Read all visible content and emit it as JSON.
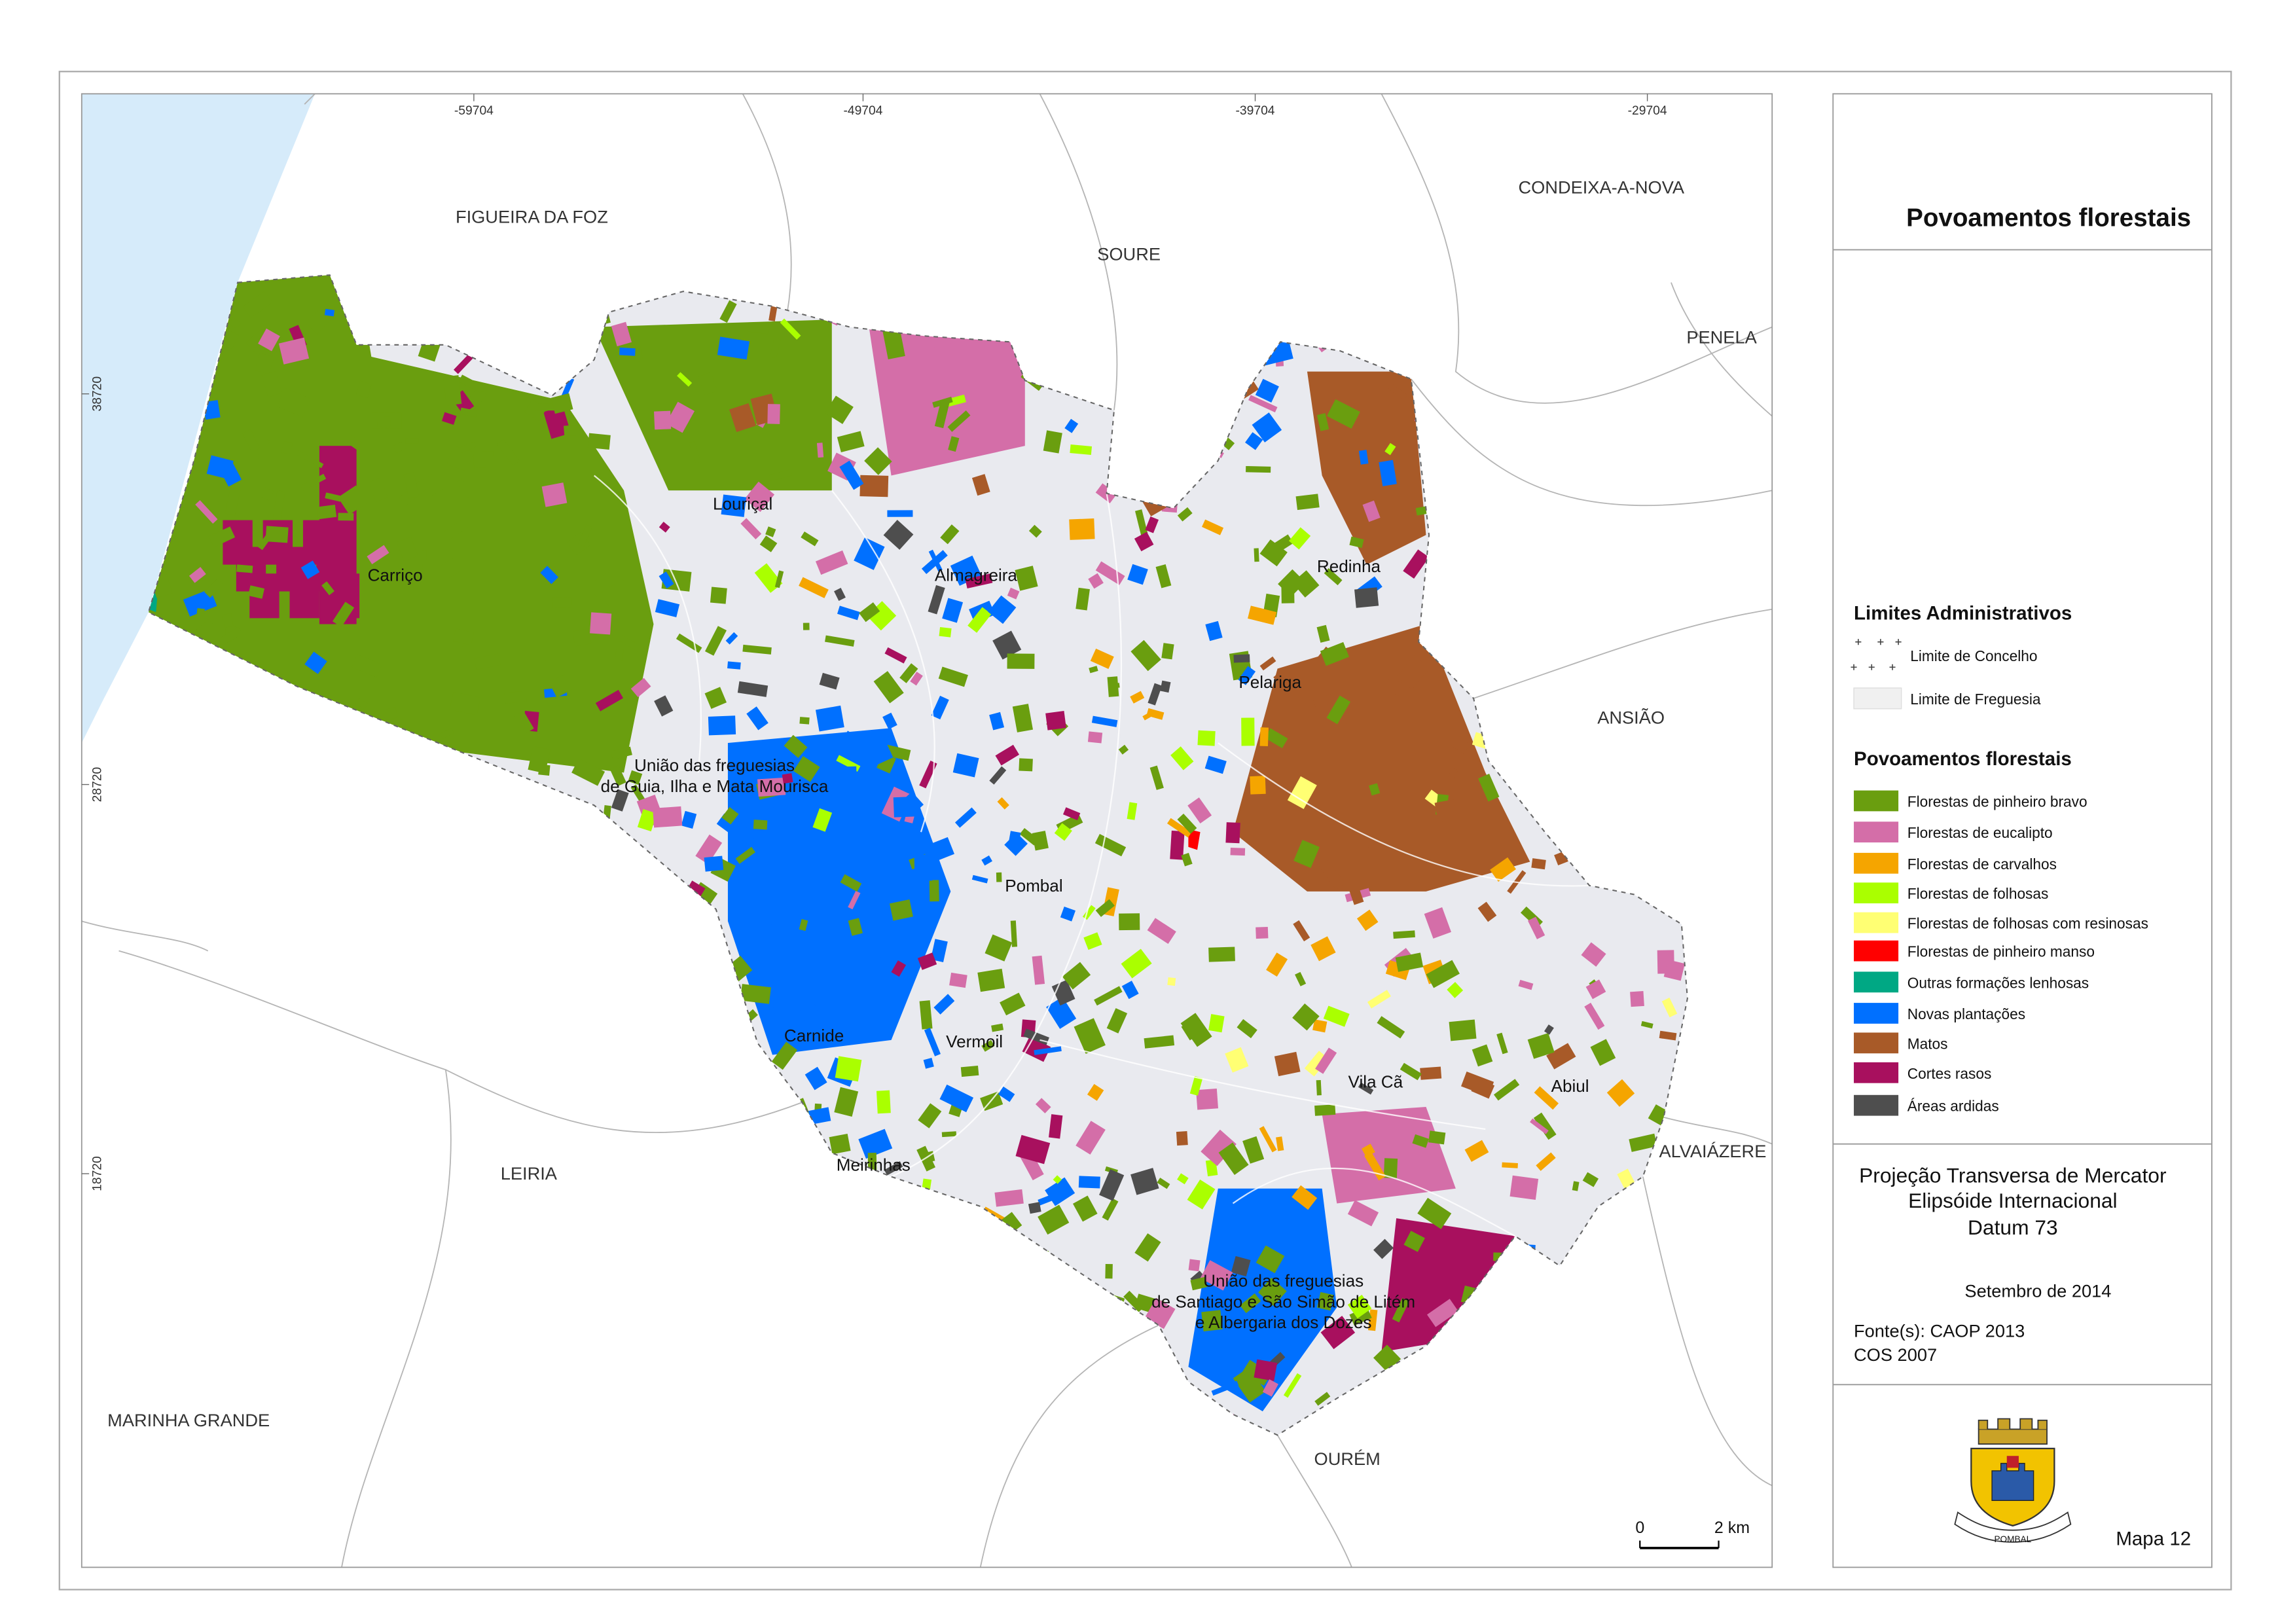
{
  "map": {
    "coords_x": [
      "-59704",
      "-49704",
      "-39704",
      "-29704"
    ],
    "coords_y": [
      "38720",
      "28720",
      "18720"
    ],
    "neighbors": [
      "FIGUEIRA DA FOZ",
      "SOURE",
      "CONDEIXA-A-NOVA",
      "PENELA",
      "ANSIÃO",
      "ALVAIÁZERE",
      "LEIRIA",
      "MARINHA GRANDE",
      "OURÉM"
    ],
    "parishes": [
      [
        "Louriçal"
      ],
      [
        "Carriço"
      ],
      [
        "Almagreira"
      ],
      [
        "Redinha"
      ],
      [
        "Pelariga"
      ],
      [
        "União das freguesias",
        "de Guia, Ilha e Mata Mourisca"
      ],
      [
        "Pombal"
      ],
      [
        "Carnide"
      ],
      [
        "Vermoil"
      ],
      [
        "Vila Cã"
      ],
      [
        "Abiul"
      ],
      [
        "Meirinhas"
      ],
      [
        "União das freguesias",
        "de Santiago e São Simão de Litém",
        "e Albergaria dos Dozes"
      ]
    ],
    "scale": {
      "zero": "0",
      "label": "2 km"
    }
  },
  "legend": {
    "title": "Povoamentos florestais",
    "admin_title": "Limites Administrativos",
    "admin": [
      "Limite de Concelho",
      "Limite de Freguesia"
    ],
    "classes_title": "Povoamentos florestais",
    "classes": [
      {
        "label": "Florestas de pinheiro bravo",
        "color": "#6a9e0f"
      },
      {
        "label": "Florestas de eucalipto",
        "color": "#d46ea8"
      },
      {
        "label": "Florestas de carvalhos",
        "color": "#f5a500"
      },
      {
        "label": "Florestas de folhosas",
        "color": "#aaff00"
      },
      {
        "label": "Florestas de folhosas com resinosas",
        "color": "#ffff73"
      },
      {
        "label": "Florestas de pinheiro manso",
        "color": "#ff0000"
      },
      {
        "label": "Outras formações lenhosas",
        "color": "#00a884"
      },
      {
        "label": "Novas plantações",
        "color": "#0070ff"
      },
      {
        "label": "Matos",
        "color": "#a85a28"
      },
      {
        "label": "Cortes rasos",
        "color": "#a8105e"
      },
      {
        "label": "Áreas ardidas",
        "color": "#4e4e4e"
      }
    ]
  },
  "projection": [
    "Projeção Transversa de Mercator",
    "Elipsóide Internacional",
    "Datum 73"
  ],
  "date": "Setembro de 2014",
  "sources": [
    "Fonte(s): CAOP 2013",
    "COS 2007"
  ],
  "map_number": "Mapa 12",
  "logo_text": "POMBAL"
}
